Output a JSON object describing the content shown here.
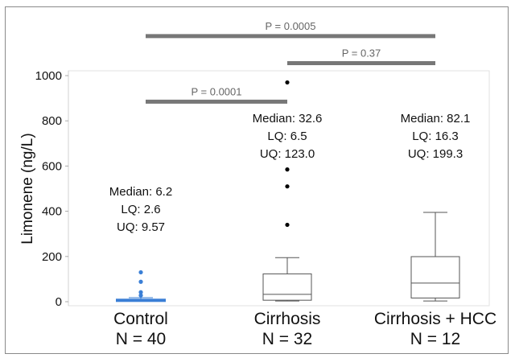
{
  "chart_data": {
    "type": "box",
    "ylabel": "Limonene (ng/L)",
    "ylim": [
      0,
      1000
    ],
    "yticks": [
      0,
      200,
      400,
      600,
      800,
      1000
    ],
    "categories": [
      {
        "label": "Control",
        "n_label": "N = 40",
        "box": {
          "whisker_low": 2,
          "q1": 2.6,
          "median": 6.2,
          "q3": 9.57,
          "whisker_high": 18
        },
        "outliers": [
          28,
          42,
          88,
          130
        ],
        "annotation": [
          "Median: 6.2",
          "LQ: 2.6",
          "UQ: 9.57"
        ],
        "color": "#3a7fd6"
      },
      {
        "label": "Cirrhosis",
        "n_label": "N = 32",
        "box": {
          "whisker_low": 3,
          "q1": 6.5,
          "median": 32.6,
          "q3": 123.0,
          "whisker_high": 195
        },
        "outliers": [
          340,
          510,
          585,
          970
        ],
        "annotation": [
          "Median: 32.6",
          "LQ: 6.5",
          "UQ: 123.0"
        ],
        "color": "#555555"
      },
      {
        "label": "Cirrhosis + HCC",
        "n_label": "N = 12",
        "box": {
          "whisker_low": 3,
          "q1": 16.3,
          "median": 82.1,
          "q3": 199.3,
          "whisker_high": 395
        },
        "outliers": [],
        "annotation": [
          "Median: 82.1",
          "LQ: 16.3",
          "UQ: 199.3"
        ],
        "color": "#555555"
      }
    ],
    "comparisons": [
      {
        "label": "P = 0.0001",
        "from": 0,
        "to": 1,
        "y": 885
      },
      {
        "label": "P = 0.37",
        "from": 1,
        "to": 2,
        "y": 1055
      },
      {
        "label": "P = 0.0005",
        "from": 0,
        "to": 2,
        "y": 1175
      }
    ],
    "bracket_color": "#777777"
  }
}
